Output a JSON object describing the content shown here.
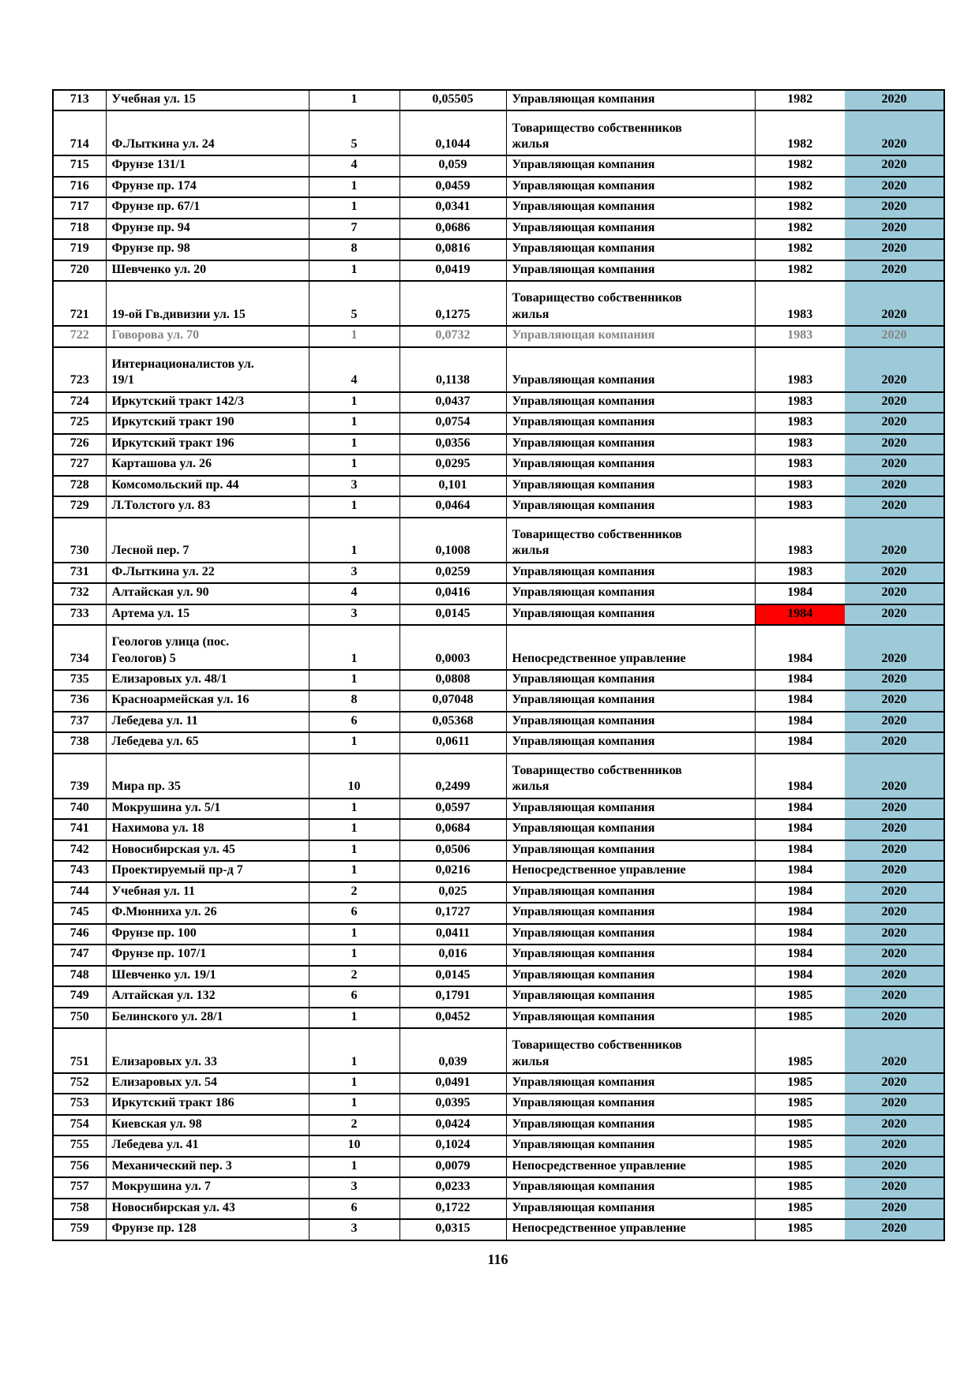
{
  "page": {
    "number": "116"
  },
  "colors": {
    "highlight_blue": "#9DCAD9",
    "highlight_red": "#FF0000",
    "dim_text": "#848484"
  },
  "table": {
    "rows": [
      {
        "num": "713",
        "address": "Учебная ул. 15",
        "count": "1",
        "share": "0,05505",
        "management": "Управляющая компания",
        "year": "1982",
        "year2": "2020"
      },
      {
        "num": "714",
        "address": "Ф.Лыткина ул. 24",
        "count": "5",
        "share": "0,1044",
        "management": "Товарищество собственников\nжилья",
        "year": "1982",
        "year2": "2020"
      },
      {
        "num": "715",
        "address": "Фрунзе 131/1",
        "count": "4",
        "share": "0,059",
        "management": "Управляющая компания",
        "year": "1982",
        "year2": "2020"
      },
      {
        "num": "716",
        "address": "Фрунзе пр. 174",
        "count": "1",
        "share": "0,0459",
        "management": "Управляющая компания",
        "year": "1982",
        "year2": "2020"
      },
      {
        "num": "717",
        "address": "Фрунзе пр. 67/1",
        "count": "1",
        "share": "0,0341",
        "management": "Управляющая компания",
        "year": "1982",
        "year2": "2020"
      },
      {
        "num": "718",
        "address": "Фрунзе пр. 94",
        "count": "7",
        "share": "0,0686",
        "management": "Управляющая компания",
        "year": "1982",
        "year2": "2020"
      },
      {
        "num": "719",
        "address": "Фрунзе пр. 98",
        "count": "8",
        "share": "0,0816",
        "management": "Управляющая компания",
        "year": "1982",
        "year2": "2020"
      },
      {
        "num": "720",
        "address": "Шевченко ул. 20",
        "count": "1",
        "share": "0,0419",
        "management": "Управляющая компания",
        "year": "1982",
        "year2": "2020"
      },
      {
        "num": "721",
        "address": "19-ой Гв.дивизии ул. 15",
        "count": "5",
        "share": "0,1275",
        "management": "Товарищество собственников\nжилья",
        "year": "1983",
        "year2": "2020"
      },
      {
        "num": "722",
        "address": "Говорова ул. 70",
        "count": "1",
        "share": "0,0732",
        "management": "Управляющая компания",
        "year": "1983",
        "year2": "2020",
        "dim": true
      },
      {
        "num": "723",
        "address": "Интернационалистов ул.\n19/1",
        "count": "4",
        "share": "0,1138",
        "management": "Управляющая компания",
        "year": "1983",
        "year2": "2020"
      },
      {
        "num": "724",
        "address": "Иркутский тракт 142/3",
        "count": "1",
        "share": "0,0437",
        "management": "Управляющая компания",
        "year": "1983",
        "year2": "2020"
      },
      {
        "num": "725",
        "address": "Иркутский тракт 190",
        "count": "1",
        "share": "0,0754",
        "management": "Управляющая компания",
        "year": "1983",
        "year2": "2020"
      },
      {
        "num": "726",
        "address": "Иркутский тракт 196",
        "count": "1",
        "share": "0,0356",
        "management": "Управляющая компания",
        "year": "1983",
        "year2": "2020"
      },
      {
        "num": "727",
        "address": "Карташова ул. 26",
        "count": "1",
        "share": "0,0295",
        "management": "Управляющая компания",
        "year": "1983",
        "year2": "2020"
      },
      {
        "num": "728",
        "address": "Комсомольский пр. 44",
        "count": "3",
        "share": "0,101",
        "management": "Управляющая компания",
        "year": "1983",
        "year2": "2020"
      },
      {
        "num": "729",
        "address": "Л.Толстого ул. 83",
        "count": "1",
        "share": "0,0464",
        "management": "Управляющая компания",
        "year": "1983",
        "year2": "2020"
      },
      {
        "num": "730",
        "address": "Лесной пер. 7",
        "count": "1",
        "share": "0,1008",
        "management": "Товарищество собственников\nжилья",
        "year": "1983",
        "year2": "2020"
      },
      {
        "num": "731",
        "address": "Ф.Лыткина ул. 22",
        "count": "3",
        "share": "0,0259",
        "management": "Управляющая компания",
        "year": "1983",
        "year2": "2020"
      },
      {
        "num": "732",
        "address": "Алтайская ул. 90",
        "count": "4",
        "share": "0,0416",
        "management": "Управляющая компания",
        "year": "1984",
        "year2": "2020"
      },
      {
        "num": "733",
        "address": "Артема ул. 15",
        "count": "3",
        "share": "0,0145",
        "management": "Управляющая компания",
        "year": "1984",
        "year2": "2020",
        "year_highlight": "red"
      },
      {
        "num": "734",
        "address": "Геологов улица (пос.\nГеологов) 5",
        "count": "1",
        "share": "0,0003",
        "management": "Непосредственное управление",
        "year": "1984",
        "year2": "2020"
      },
      {
        "num": "735",
        "address": "Елизаровых ул. 48/1",
        "count": "1",
        "share": "0,0808",
        "management": "Управляющая компания",
        "year": "1984",
        "year2": "2020"
      },
      {
        "num": "736",
        "address": "Красноармейская ул. 16",
        "count": "8",
        "share": "0,07048",
        "management": "Управляющая компания",
        "year": "1984",
        "year2": "2020"
      },
      {
        "num": "737",
        "address": "Лебедева ул. 11",
        "count": "6",
        "share": "0,05368",
        "management": "Управляющая компания",
        "year": "1984",
        "year2": "2020"
      },
      {
        "num": "738",
        "address": "Лебедева ул. 65",
        "count": "1",
        "share": "0,0611",
        "management": "Управляющая компания",
        "year": "1984",
        "year2": "2020"
      },
      {
        "num": "739",
        "address": "Мира пр. 35",
        "count": "10",
        "share": "0,2499",
        "management": "Товарищество собственников\nжилья",
        "year": "1984",
        "year2": "2020"
      },
      {
        "num": "740",
        "address": "Мокрушина ул. 5/1",
        "count": "1",
        "share": "0,0597",
        "management": "Управляющая компания",
        "year": "1984",
        "year2": "2020"
      },
      {
        "num": "741",
        "address": "Нахимова ул. 18",
        "count": "1",
        "share": "0,0684",
        "management": "Управляющая компания",
        "year": "1984",
        "year2": "2020"
      },
      {
        "num": "742",
        "address": "Новосибирская ул. 45",
        "count": "1",
        "share": "0,0506",
        "management": "Управляющая компания",
        "year": "1984",
        "year2": "2020"
      },
      {
        "num": "743",
        "address": "Проектируемый пр-д 7",
        "count": "1",
        "share": "0,0216",
        "management": "Непосредственное управление",
        "year": "1984",
        "year2": "2020"
      },
      {
        "num": "744",
        "address": "Учебная ул. 11",
        "count": "2",
        "share": "0,025",
        "management": "Управляющая компания",
        "year": "1984",
        "year2": "2020"
      },
      {
        "num": "745",
        "address": "Ф.Мюнниха ул. 26",
        "count": "6",
        "share": "0,1727",
        "management": "Управляющая компания",
        "year": "1984",
        "year2": "2020"
      },
      {
        "num": "746",
        "address": "Фрунзе пр. 100",
        "count": "1",
        "share": "0,0411",
        "management": "Управляющая компания",
        "year": "1984",
        "year2": "2020"
      },
      {
        "num": "747",
        "address": "Фрунзе пр. 107/1",
        "count": "1",
        "share": "0,016",
        "management": "Управляющая компания",
        "year": "1984",
        "year2": "2020"
      },
      {
        "num": "748",
        "address": "Шевченко ул. 19/1",
        "count": "2",
        "share": "0,0145",
        "management": "Управляющая компания",
        "year": "1984",
        "year2": "2020"
      },
      {
        "num": "749",
        "address": "Алтайская ул. 132",
        "count": "6",
        "share": "0,1791",
        "management": "Управляющая компания",
        "year": "1985",
        "year2": "2020"
      },
      {
        "num": "750",
        "address": "Белинского ул. 28/1",
        "count": "1",
        "share": "0,0452",
        "management": "Управляющая компания",
        "year": "1985",
        "year2": "2020"
      },
      {
        "num": "751",
        "address": "Елизаровых ул. 33",
        "count": "1",
        "share": "0,039",
        "management": "Товарищество собственников\nжилья",
        "year": "1985",
        "year2": "2020"
      },
      {
        "num": "752",
        "address": "Елизаровых ул. 54",
        "count": "1",
        "share": "0,0491",
        "management": "Управляющая компания",
        "year": "1985",
        "year2": "2020"
      },
      {
        "num": "753",
        "address": "Иркутский тракт 186",
        "count": "1",
        "share": "0,0395",
        "management": "Управляющая компания",
        "year": "1985",
        "year2": "2020"
      },
      {
        "num": "754",
        "address": "Киевская ул. 98",
        "count": "2",
        "share": "0,0424",
        "management": "Управляющая компания",
        "year": "1985",
        "year2": "2020"
      },
      {
        "num": "755",
        "address": "Лебедева ул. 41",
        "count": "10",
        "share": "0,1024",
        "management": "Управляющая компания",
        "year": "1985",
        "year2": "2020"
      },
      {
        "num": "756",
        "address": "Механический пер. 3",
        "count": "1",
        "share": "0,0079",
        "management": "Непосредственное управление",
        "year": "1985",
        "year2": "2020"
      },
      {
        "num": "757",
        "address": "Мокрушина ул. 7",
        "count": "3",
        "share": "0,0233",
        "management": "Управляющая компания",
        "year": "1985",
        "year2": "2020"
      },
      {
        "num": "758",
        "address": "Новосибирская ул. 43",
        "count": "6",
        "share": "0,1722",
        "management": "Управляющая компания",
        "year": "1985",
        "year2": "2020"
      },
      {
        "num": "759",
        "address": "Фрунзе пр. 128",
        "count": "3",
        "share": "0,0315",
        "management": "Непосредственное управление",
        "year": "1985",
        "year2": "2020"
      }
    ]
  }
}
